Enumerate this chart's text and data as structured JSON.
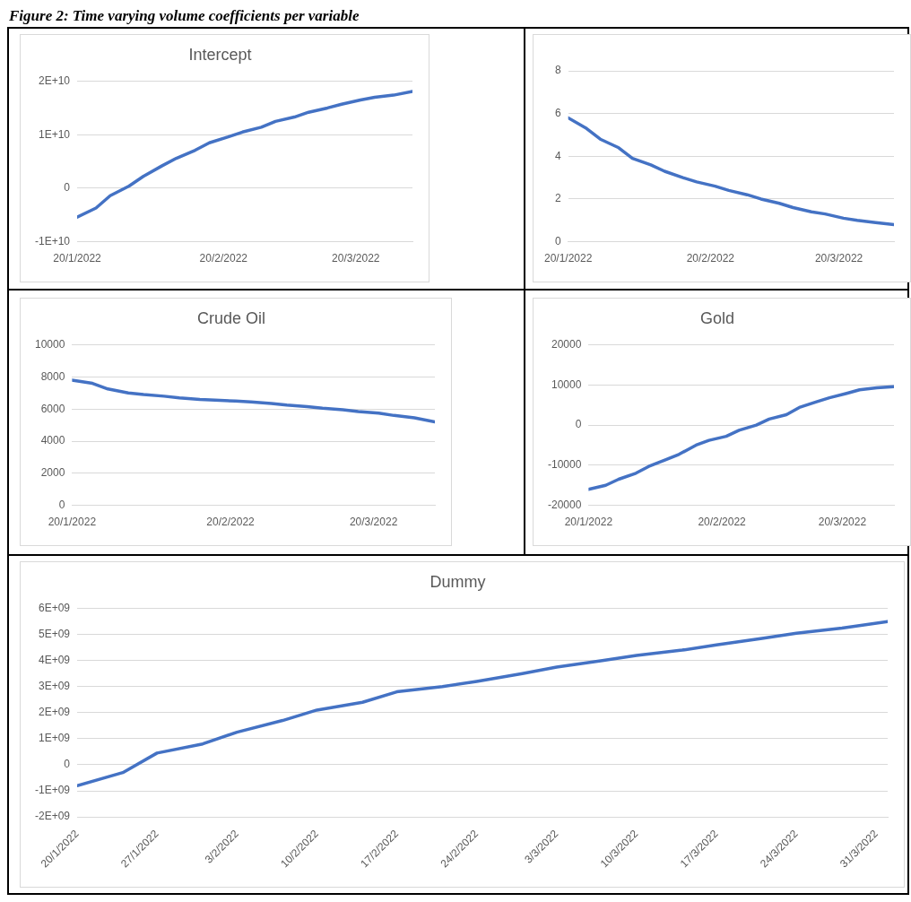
{
  "chart_data": [
    {
      "type": "line",
      "title": "Intercept",
      "annotations": [
        "Figure 2: Time varying volume coefficients per variable"
      ],
      "x": [
        "2022-01-20",
        "2022-01-24",
        "2022-01-27",
        "2022-01-31",
        "2022-02-03",
        "2022-02-07",
        "2022-02-10",
        "2022-02-14",
        "2022-02-17",
        "2022-02-21",
        "2022-02-24",
        "2022-02-28",
        "2022-03-03",
        "2022-03-07",
        "2022-03-10",
        "2022-03-14",
        "2022-03-17",
        "2022-03-21",
        "2022-03-24",
        "2022-03-28",
        "2022-04-01"
      ],
      "values": [
        -5400000000,
        -3700000000,
        -1400000000,
        400000000,
        2200000000,
        4200000000,
        5600000000,
        7100000000,
        8500000000,
        9600000000,
        10500000000,
        11400000000,
        12500000000,
        13300000000,
        14200000000,
        15000000000,
        15700000000,
        16500000000,
        17000000000,
        17400000000,
        18100000000
      ],
      "color": "#4472c4",
      "xlim": [
        "2022-01-20",
        "2022-04-01"
      ],
      "xticks": [
        {
          "value": "2022-01-20",
          "label": "20/1/2022"
        },
        {
          "value": "2022-02-20",
          "label": "20/2/2022"
        },
        {
          "value": "2022-03-20",
          "label": "20/3/2022"
        }
      ],
      "ylim": [
        -10000000000,
        20000000000
      ],
      "yticks": [
        {
          "value": -10000000000,
          "label": "-1E+10"
        },
        {
          "value": 0,
          "label": "0"
        },
        {
          "value": 10000000000,
          "label": "1E+10"
        },
        {
          "value": 20000000000,
          "label": "2E+10"
        }
      ],
      "grid": "y",
      "legend": false
    },
    {
      "type": "line",
      "x": [
        "2022-01-20",
        "2022-01-24",
        "2022-01-27",
        "2022-01-31",
        "2022-02-03",
        "2022-02-07",
        "2022-02-10",
        "2022-02-14",
        "2022-02-17",
        "2022-02-21",
        "2022-02-24",
        "2022-02-28",
        "2022-03-03",
        "2022-03-07",
        "2022-03-10",
        "2022-03-14",
        "2022-03-17",
        "2022-03-21",
        "2022-03-24",
        "2022-03-28",
        "2022-04-01"
      ],
      "values": [
        5.8,
        5.3,
        4.8,
        4.4,
        3.9,
        3.6,
        3.3,
        3.0,
        2.8,
        2.6,
        2.4,
        2.2,
        2.0,
        1.8,
        1.6,
        1.4,
        1.3,
        1.1,
        1.0,
        0.9,
        0.8
      ],
      "color": "#4472c4",
      "xlim": [
        "2022-01-20",
        "2022-04-01"
      ],
      "xticks": [
        {
          "value": "2022-01-20",
          "label": "20/1/2022"
        },
        {
          "value": "2022-02-20",
          "label": "20/2/2022"
        },
        {
          "value": "2022-03-20",
          "label": "20/3/2022"
        }
      ],
      "ylim": [
        0,
        8
      ],
      "yticks": [
        0,
        2,
        4,
        6,
        8
      ],
      "grid": "y",
      "legend": false
    },
    {
      "type": "line",
      "title": "Crude Oil",
      "x": [
        "2022-01-20",
        "2022-01-24",
        "2022-01-27",
        "2022-01-31",
        "2022-02-03",
        "2022-02-07",
        "2022-02-10",
        "2022-02-14",
        "2022-02-17",
        "2022-02-21",
        "2022-02-24",
        "2022-02-28",
        "2022-03-03",
        "2022-03-07",
        "2022-03-10",
        "2022-03-14",
        "2022-03-17",
        "2022-03-21",
        "2022-03-24",
        "2022-03-28",
        "2022-04-01"
      ],
      "values": [
        7800,
        7600,
        7250,
        7000,
        6900,
        6800,
        6700,
        6600,
        6550,
        6500,
        6450,
        6350,
        6250,
        6150,
        6050,
        5950,
        5850,
        5750,
        5600,
        5450,
        5200
      ],
      "color": "#4472c4",
      "xlim": [
        "2022-01-20",
        "2022-04-01"
      ],
      "xticks": [
        {
          "value": "2022-01-20",
          "label": "20/1/2022"
        },
        {
          "value": "2022-02-20",
          "label": "20/2/2022"
        },
        {
          "value": "2022-03-20",
          "label": "20/3/2022"
        }
      ],
      "ylim": [
        0,
        10000
      ],
      "yticks": [
        0,
        2000,
        4000,
        6000,
        8000,
        10000
      ],
      "grid": "y",
      "legend": false
    },
    {
      "type": "line",
      "title": "Gold",
      "x": [
        "2022-01-20",
        "2022-01-24",
        "2022-01-27",
        "2022-01-31",
        "2022-02-03",
        "2022-02-07",
        "2022-02-10",
        "2022-02-14",
        "2022-02-17",
        "2022-02-21",
        "2022-02-24",
        "2022-02-28",
        "2022-03-03",
        "2022-03-07",
        "2022-03-10",
        "2022-03-14",
        "2022-03-17",
        "2022-03-21",
        "2022-03-24",
        "2022-03-28",
        "2022-04-01"
      ],
      "values": [
        -16000,
        -15000,
        -13500,
        -12000,
        -10300,
        -8600,
        -7300,
        -5000,
        -3800,
        -2800,
        -1300,
        0,
        1500,
        2600,
        4400,
        5800,
        6800,
        7900,
        8800,
        9300,
        9600
      ],
      "color": "#4472c4",
      "xlim": [
        "2022-01-20",
        "2022-04-01"
      ],
      "xticks": [
        {
          "value": "2022-01-20",
          "label": "20/1/2022"
        },
        {
          "value": "2022-02-20",
          "label": "20/2/2022"
        },
        {
          "value": "2022-03-20",
          "label": "20/3/2022"
        }
      ],
      "ylim": [
        -20000,
        20000
      ],
      "yticks": [
        -20000,
        -10000,
        0,
        10000,
        20000
      ],
      "grid": "y",
      "legend": false
    },
    {
      "type": "line",
      "title": "Dummy",
      "x": [
        "2022-01-20",
        "2022-01-24",
        "2022-01-27",
        "2022-01-31",
        "2022-02-03",
        "2022-02-07",
        "2022-02-10",
        "2022-02-14",
        "2022-02-17",
        "2022-02-21",
        "2022-02-24",
        "2022-02-28",
        "2022-03-03",
        "2022-03-07",
        "2022-03-10",
        "2022-03-14",
        "2022-03-17",
        "2022-03-21",
        "2022-03-24",
        "2022-03-28",
        "2022-04-01"
      ],
      "values": [
        -800000000,
        -300000000,
        450000000,
        800000000,
        1250000000,
        1700000000,
        2100000000,
        2400000000,
        2800000000,
        3000000000,
        3200000000,
        3500000000,
        3750000000,
        4000000000,
        4200000000,
        4400000000,
        4600000000,
        4850000000,
        5050000000,
        5250000000,
        5500000000
      ],
      "color": "#4472c4",
      "xlim": [
        "2022-01-20",
        "2022-04-01"
      ],
      "xticks": [
        {
          "value": "2022-01-20",
          "label": "20/1/2022"
        },
        {
          "value": "2022-01-27",
          "label": "27/1/2022"
        },
        {
          "value": "2022-02-03",
          "label": "3/2/2022"
        },
        {
          "value": "2022-02-10",
          "label": "10/2/2022"
        },
        {
          "value": "2022-02-17",
          "label": "17/2/2022"
        },
        {
          "value": "2022-02-24",
          "label": "24/2/2022"
        },
        {
          "value": "2022-03-03",
          "label": "3/3/2022"
        },
        {
          "value": "2022-03-10",
          "label": "10/3/2022"
        },
        {
          "value": "2022-03-17",
          "label": "17/3/2022"
        },
        {
          "value": "2022-03-24",
          "label": "24/3/2022"
        },
        {
          "value": "2022-03-31",
          "label": "31/3/2022"
        }
      ],
      "ylim": [
        -2000000000,
        6000000000
      ],
      "yticks": [
        {
          "value": -2000000000,
          "label": "-2E+09"
        },
        {
          "value": -1000000000,
          "label": "-1E+09"
        },
        {
          "value": 0,
          "label": "0"
        },
        {
          "value": 1000000000,
          "label": "1E+09"
        },
        {
          "value": 2000000000,
          "label": "2E+09"
        },
        {
          "value": 3000000000,
          "label": "3E+09"
        },
        {
          "value": 4000000000,
          "label": "4E+09"
        },
        {
          "value": 5000000000,
          "label": "5E+09"
        },
        {
          "value": 6000000000,
          "label": "6E+09"
        }
      ],
      "grid": "y",
      "legend": false
    }
  ]
}
